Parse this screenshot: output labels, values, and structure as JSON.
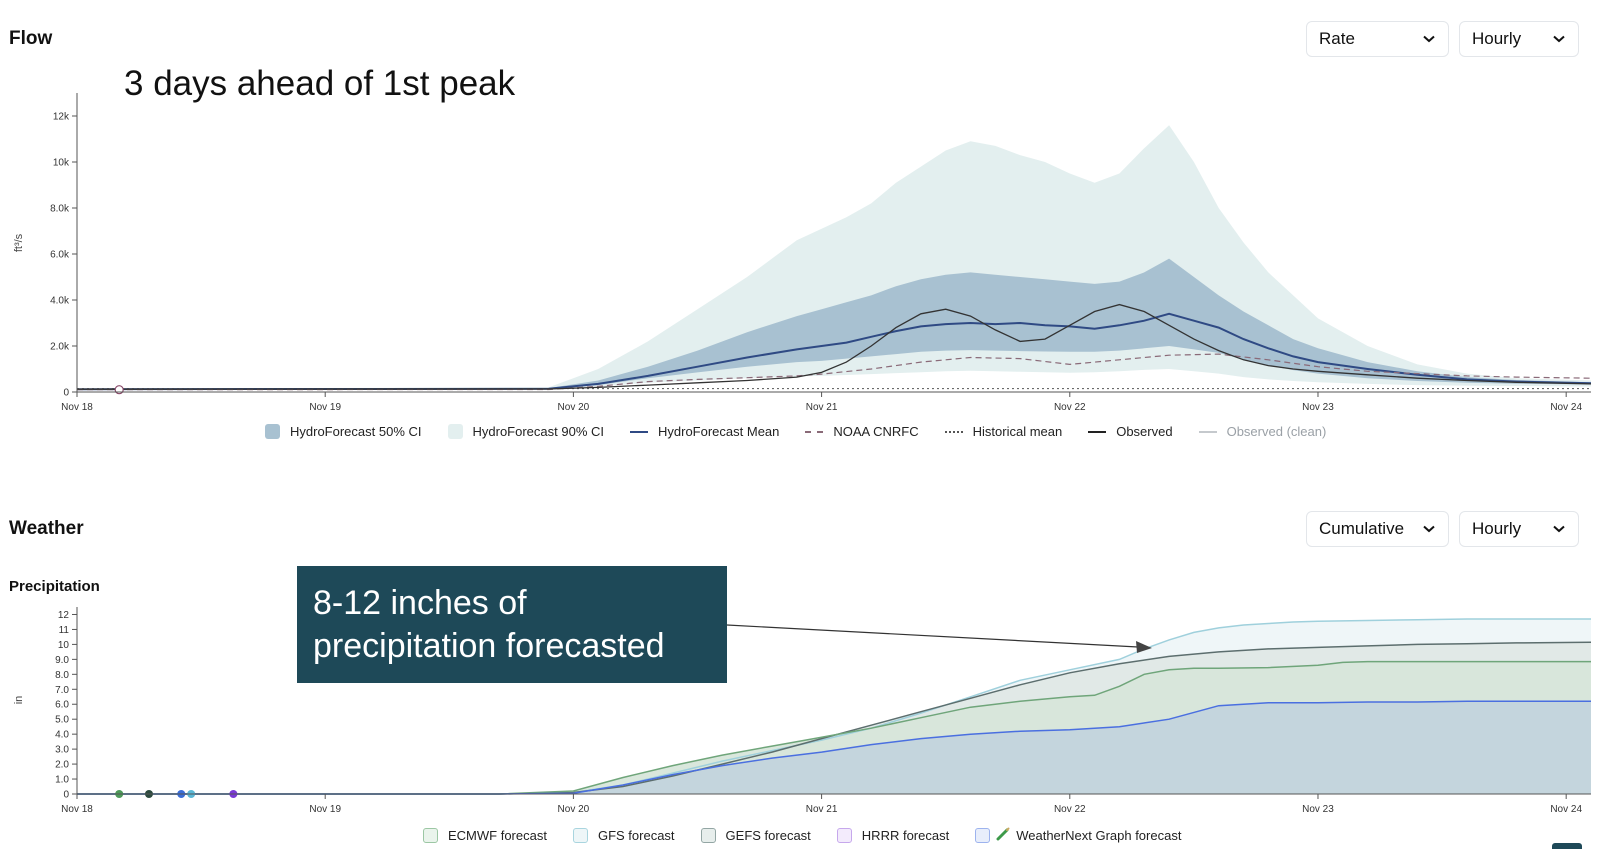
{
  "flow": {
    "title": "Flow",
    "rate_select": "Rate",
    "interval_select": "Hourly",
    "annotation": "3 days ahead of 1st peak"
  },
  "weather": {
    "title": "Weather",
    "mode_select": "Cumulative",
    "interval_select": "Hourly",
    "subtitle": "Precipitation",
    "annotation": "8-12 inches of precipitation forecasted"
  },
  "chart_data": [
    {
      "type": "area",
      "title": "Flow",
      "xlabel": "",
      "ylabel": "ft³/s",
      "xlim": [
        0,
        6.1
      ],
      "ylim": [
        0,
        13000
      ],
      "grid": false,
      "legend_position": "bottom",
      "x_ticks": [
        {
          "x": 0,
          "label": "Nov 18"
        },
        {
          "x": 1,
          "label": "Nov 19"
        },
        {
          "x": 2,
          "label": "Nov 20"
        },
        {
          "x": 3,
          "label": "Nov 21"
        },
        {
          "x": 4,
          "label": "Nov 22"
        },
        {
          "x": 5,
          "label": "Nov 23"
        },
        {
          "x": 6,
          "label": "Nov 24"
        }
      ],
      "y_ticks": [
        {
          "y": 0,
          "label": "0"
        },
        {
          "y": 2000,
          "label": "2.0k"
        },
        {
          "y": 4000,
          "label": "4.0k"
        },
        {
          "y": 6000,
          "label": "6.0k"
        },
        {
          "y": 8000,
          "label": "8.0k"
        },
        {
          "y": 10000,
          "label": "10k"
        },
        {
          "y": 12000,
          "label": "12k"
        }
      ],
      "x_unit": "days from Nov 18",
      "bands": [
        {
          "name": "HydroForecast 90% CI",
          "color": "#e3efef",
          "x": [
            0,
            1.9,
            2.1,
            2.3,
            2.5,
            2.7,
            2.9,
            3.0,
            3.1,
            3.2,
            3.3,
            3.4,
            3.5,
            3.6,
            3.7,
            3.8,
            3.9,
            4.0,
            4.1,
            4.2,
            4.3,
            4.4,
            4.5,
            4.6,
            4.7,
            4.8,
            4.9,
            5.0,
            5.2,
            5.4,
            5.6,
            5.8,
            6.1
          ],
          "upper": [
            150,
            200,
            1000,
            2200,
            3600,
            5000,
            6600,
            7100,
            7600,
            8200,
            9100,
            9800,
            10500,
            10900,
            10700,
            10300,
            10000,
            9500,
            9100,
            9500,
            10600,
            11600,
            10000,
            8000,
            6500,
            5200,
            4200,
            3200,
            2000,
            1200,
            800,
            600,
            500
          ],
          "lower": [
            80,
            100,
            250,
            400,
            500,
            600,
            680,
            700,
            740,
            780,
            820,
            860,
            900,
            920,
            900,
            880,
            860,
            840,
            860,
            900,
            960,
            1000,
            900,
            800,
            650,
            550,
            480,
            420,
            350,
            300,
            280,
            260,
            240
          ]
        },
        {
          "name": "HydroForecast 50% CI",
          "color": "#a8c1d1",
          "x": [
            0,
            1.9,
            2.1,
            2.3,
            2.5,
            2.7,
            2.9,
            3.0,
            3.1,
            3.2,
            3.3,
            3.4,
            3.5,
            3.6,
            3.7,
            3.8,
            3.9,
            4.0,
            4.1,
            4.2,
            4.3,
            4.4,
            4.5,
            4.6,
            4.7,
            4.8,
            4.9,
            5.0,
            5.2,
            5.4,
            5.6,
            5.8,
            6.1
          ],
          "upper": [
            140,
            170,
            500,
            1100,
            1800,
            2600,
            3300,
            3600,
            3900,
            4200,
            4600,
            4900,
            5100,
            5200,
            5100,
            5000,
            4900,
            4800,
            4700,
            4800,
            5200,
            5800,
            5000,
            4200,
            3500,
            2900,
            2300,
            1900,
            1300,
            900,
            650,
            520,
            420
          ],
          "lower": [
            90,
            120,
            300,
            600,
            850,
            1100,
            1300,
            1350,
            1450,
            1550,
            1650,
            1750,
            1800,
            1820,
            1800,
            1780,
            1760,
            1750,
            1750,
            1800,
            1900,
            2000,
            1850,
            1700,
            1400,
            1150,
            950,
            800,
            600,
            480,
            400,
            360,
            320
          ]
        }
      ],
      "series": [
        {
          "name": "HydroForecast Mean",
          "color": "#2f4a84",
          "dash": "solid",
          "width": 2,
          "x": [
            0,
            1.9,
            2.1,
            2.3,
            2.5,
            2.7,
            2.9,
            3.0,
            3.1,
            3.2,
            3.3,
            3.4,
            3.5,
            3.6,
            3.7,
            3.8,
            3.9,
            4.0,
            4.1,
            4.2,
            4.3,
            4.4,
            4.5,
            4.6,
            4.7,
            4.8,
            4.9,
            5.0,
            5.2,
            5.4,
            5.6,
            5.8,
            6.1
          ],
          "y": [
            120,
            140,
            350,
            700,
            1100,
            1500,
            1850,
            2000,
            2150,
            2400,
            2650,
            2850,
            2950,
            3000,
            2950,
            3000,
            2900,
            2850,
            2750,
            2900,
            3100,
            3400,
            3100,
            2800,
            2300,
            1900,
            1550,
            1300,
            1000,
            750,
            550,
            450,
            380
          ]
        },
        {
          "name": "NOAA CNRFC",
          "color": "#8a6a78",
          "dash": "dashed",
          "width": 1.2,
          "x": [
            0,
            1.9,
            2.1,
            2.3,
            2.5,
            2.7,
            2.9,
            3.0,
            3.2,
            3.4,
            3.6,
            3.8,
            4.0,
            4.2,
            4.4,
            4.6,
            4.8,
            5.0,
            5.2,
            5.4,
            5.6,
            5.8,
            6.1
          ],
          "y": [
            100,
            110,
            250,
            450,
            550,
            620,
            700,
            780,
            1000,
            1300,
            1500,
            1450,
            1200,
            1400,
            1600,
            1650,
            1400,
            1100,
            900,
            800,
            700,
            650,
            600
          ]
        },
        {
          "name": "Historical mean",
          "color": "#555555",
          "dash": "dotted",
          "width": 1,
          "x": [
            0,
            6.1
          ],
          "y": [
            150,
            150
          ]
        },
        {
          "name": "Observed",
          "color": "#333333",
          "dash": "solid",
          "width": 1.3,
          "x": [
            0,
            1.9,
            2.1,
            2.3,
            2.5,
            2.7,
            2.9,
            3.0,
            3.1,
            3.2,
            3.3,
            3.4,
            3.5,
            3.6,
            3.7,
            3.8,
            3.9,
            4.0,
            4.1,
            4.2,
            4.3,
            4.4,
            4.5,
            4.6,
            4.7,
            4.8,
            4.9,
            5.0,
            5.2,
            5.4,
            5.6,
            5.8,
            6.1
          ],
          "y": [
            120,
            130,
            200,
            300,
            400,
            500,
            650,
            850,
            1300,
            2000,
            2800,
            3400,
            3600,
            3300,
            2700,
            2200,
            2300,
            2900,
            3500,
            3800,
            3500,
            2900,
            2300,
            1800,
            1400,
            1150,
            1000,
            900,
            750,
            600,
            500,
            420,
            350
          ]
        },
        {
          "name": "Observed (clean)",
          "color": "#c5c9cd",
          "dash": "solid",
          "width": 1,
          "x": [],
          "y": []
        }
      ],
      "markers": [
        {
          "x": 0.17,
          "y": 100,
          "color": "#8a4a6a"
        }
      ]
    },
    {
      "type": "area",
      "title": "Precipitation",
      "xlabel": "",
      "ylabel": "in",
      "xlim": [
        0,
        6.1
      ],
      "ylim": [
        0,
        12.5
      ],
      "grid": false,
      "legend_position": "bottom",
      "x_ticks": [
        {
          "x": 0,
          "label": "Nov 18"
        },
        {
          "x": 1,
          "label": "Nov 19"
        },
        {
          "x": 2,
          "label": "Nov 20"
        },
        {
          "x": 3,
          "label": "Nov 21"
        },
        {
          "x": 4,
          "label": "Nov 22"
        },
        {
          "x": 5,
          "label": "Nov 23"
        },
        {
          "x": 6,
          "label": "Nov 24"
        }
      ],
      "y_ticks": [
        {
          "y": 0,
          "label": "0"
        },
        {
          "y": 1,
          "label": "1.0"
        },
        {
          "y": 2,
          "label": "2.0"
        },
        {
          "y": 3,
          "label": "3.0"
        },
        {
          "y": 4,
          "label": "4.0"
        },
        {
          "y": 5,
          "label": "5.0"
        },
        {
          "y": 6,
          "label": "6.0"
        },
        {
          "y": 7,
          "label": "7.0"
        },
        {
          "y": 8,
          "label": "8.0"
        },
        {
          "y": 9,
          "label": "9.0"
        },
        {
          "y": 10,
          "label": "10"
        },
        {
          "y": 11,
          "label": "11"
        },
        {
          "y": 12,
          "label": "12"
        }
      ],
      "x_unit": "days from Nov 18",
      "series": [
        {
          "name": "GFS forecast",
          "line": "#9fd0dc",
          "fill": "#eef6f8",
          "x": [
            0,
            1.7,
            2.0,
            2.2,
            2.4,
            2.6,
            2.8,
            3.0,
            3.2,
            3.4,
            3.6,
            3.8,
            4.0,
            4.2,
            4.3,
            4.4,
            4.5,
            4.6,
            4.7,
            4.8,
            4.9,
            5.0,
            5.2,
            5.4,
            5.6,
            5.8,
            6.1
          ],
          "y": [
            0,
            0,
            0.1,
            0.6,
            1.4,
            2.2,
            2.9,
            3.6,
            4.4,
            5.4,
            6.5,
            7.6,
            8.3,
            9.0,
            9.7,
            10.3,
            10.8,
            11.1,
            11.3,
            11.4,
            11.5,
            11.55,
            11.6,
            11.65,
            11.7,
            11.7,
            11.7
          ]
        },
        {
          "name": "GEFS forecast",
          "line": "#5c6e6e",
          "fill": "#dfe8e6",
          "x": [
            0,
            1.7,
            2.0,
            2.2,
            2.4,
            2.6,
            2.8,
            3.0,
            3.2,
            3.4,
            3.6,
            3.8,
            4.0,
            4.2,
            4.4,
            4.6,
            4.8,
            5.0,
            5.2,
            5.4,
            5.6,
            5.8,
            6.1
          ],
          "y": [
            0,
            0,
            0.1,
            0.5,
            1.2,
            2.0,
            2.8,
            3.7,
            4.6,
            5.5,
            6.4,
            7.3,
            8.1,
            8.7,
            9.2,
            9.5,
            9.7,
            9.8,
            9.9,
            10.0,
            10.05,
            10.1,
            10.15
          ]
        },
        {
          "name": "ECMWF forecast",
          "line": "#6fa57a",
          "fill": "#d7e6da",
          "x": [
            0,
            1.7,
            2.0,
            2.2,
            2.4,
            2.6,
            2.8,
            3.0,
            3.2,
            3.4,
            3.6,
            3.8,
            4.0,
            4.1,
            4.2,
            4.3,
            4.4,
            4.5,
            4.6,
            4.8,
            5.0,
            5.1,
            5.2,
            5.4,
            5.6,
            5.8,
            6.1
          ],
          "y": [
            0,
            0,
            0.2,
            1.1,
            1.9,
            2.6,
            3.2,
            3.8,
            4.4,
            5.1,
            5.8,
            6.2,
            6.5,
            6.6,
            7.2,
            8.0,
            8.3,
            8.4,
            8.4,
            8.45,
            8.6,
            8.8,
            8.85,
            8.85,
            8.85,
            8.85,
            8.85
          ]
        },
        {
          "name": "WeatherNext Graph forecast",
          "line": "#4a6fe0",
          "fill": "#c3d4dd",
          "x": [
            0,
            1.7,
            2.0,
            2.2,
            2.4,
            2.6,
            2.8,
            3.0,
            3.2,
            3.4,
            3.6,
            3.8,
            4.0,
            4.2,
            4.4,
            4.6,
            4.8,
            5.0,
            5.2,
            5.4,
            5.6,
            5.8,
            6.1
          ],
          "y": [
            0,
            0,
            0.05,
            0.6,
            1.3,
            1.9,
            2.4,
            2.8,
            3.3,
            3.7,
            4.0,
            4.2,
            4.3,
            4.5,
            5.0,
            5.9,
            6.1,
            6.1,
            6.15,
            6.15,
            6.2,
            6.2,
            6.2
          ]
        },
        {
          "name": "HRRR forecast",
          "line": "#9a6ad6",
          "fill": "#efe6fa",
          "x": [],
          "y": []
        }
      ],
      "markers": [
        {
          "x": 0.17,
          "y": 0,
          "color": "#4e9a5a"
        },
        {
          "x": 0.29,
          "y": 0,
          "color": "#2c4a3e"
        },
        {
          "x": 0.42,
          "y": 0,
          "color": "#3a6ed8"
        },
        {
          "x": 0.46,
          "y": 0,
          "color": "#5bb8d6"
        },
        {
          "x": 0.63,
          "y": 0,
          "color": "#7a3ad6"
        }
      ]
    }
  ]
}
